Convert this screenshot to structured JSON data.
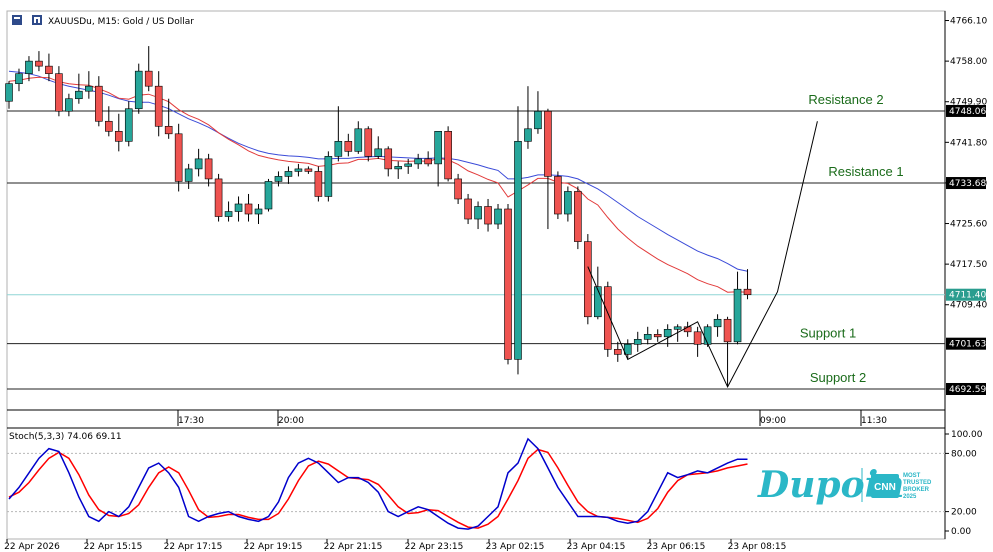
{
  "header": {
    "symbol_title": "XAUUSDu, M15:  Gold / US Dollar"
  },
  "chart_data": {
    "type": "candlestick",
    "title": "XAUUSDu, M15:  Gold / US Dollar",
    "timeframe": "M15",
    "price_axis": {
      "ticks": [
        "4766.10",
        "4758.00",
        "4749.90",
        "4741.80",
        "4733.70",
        "4725.60",
        "4717.50",
        "4709.40"
      ],
      "ylim": [
        4688.4,
        4768.0
      ]
    },
    "price_tags": [
      {
        "value": "4748.06",
        "price": 4748.06,
        "style": "dark"
      },
      {
        "value": "4733.68",
        "price": 4733.68,
        "style": "dark"
      },
      {
        "value": "4711.40",
        "price": 4711.4,
        "style": "accent"
      },
      {
        "value": "4701.63",
        "price": 4701.63,
        "style": "dark"
      },
      {
        "value": "4692.59",
        "price": 4692.59,
        "style": "dark"
      }
    ],
    "levels": [
      {
        "label": "Resistance 2",
        "price": 4748.06
      },
      {
        "label": "Resistance 1",
        "price": 4733.68
      },
      {
        "label": "Support 1",
        "price": 4701.63
      },
      {
        "label": "Support 2",
        "price": 4692.59
      }
    ],
    "current_price": 4711.4,
    "time_labels_upper": [
      "17:30",
      "20:00",
      "09:00",
      "11:30"
    ],
    "time_labels_lower": [
      "22 Apr 2026",
      "22 Apr 15:15",
      "22 Apr 17:15",
      "22 Apr 19:15",
      "22 Apr 21:15",
      "22 Apr 23:15",
      "23 Apr 02:15",
      "23 Apr 04:15",
      "23 Apr 06:15",
      "23 Apr 08:15"
    ],
    "candles": [
      [
        4750.0,
        4754.0,
        4748.5,
        4753.5
      ],
      [
        4753.5,
        4756.5,
        4752.0,
        4755.5
      ],
      [
        4755.5,
        4759.0,
        4754.0,
        4758.0
      ],
      [
        4758.0,
        4760.0,
        4756.0,
        4757.0
      ],
      [
        4757.0,
        4759.5,
        4754.0,
        4755.5
      ],
      [
        4755.5,
        4757.0,
        4747.0,
        4748.0
      ],
      [
        4748.0,
        4751.5,
        4747.0,
        4750.5
      ],
      [
        4750.5,
        4755.5,
        4749.5,
        4752.0
      ],
      [
        4752.0,
        4756.0,
        4750.5,
        4753.0
      ],
      [
        4753.0,
        4755.0,
        4745.0,
        4746.0
      ],
      [
        4746.0,
        4749.0,
        4743.0,
        4744.0
      ],
      [
        4744.0,
        4747.5,
        4740.0,
        4742.0
      ],
      [
        4742.0,
        4750.0,
        4741.0,
        4748.5
      ],
      [
        4748.5,
        4757.5,
        4747.5,
        4756.0
      ],
      [
        4756.0,
        4761.0,
        4752.0,
        4753.0
      ],
      [
        4753.0,
        4756.0,
        4743.0,
        4745.0
      ],
      [
        4745.0,
        4750.5,
        4742.5,
        4743.5
      ],
      [
        4743.5,
        4745.5,
        4732.0,
        4734.0
      ],
      [
        4734.0,
        4737.5,
        4732.5,
        4736.5
      ],
      [
        4736.5,
        4740.5,
        4735.0,
        4738.5
      ],
      [
        4738.5,
        4739.5,
        4733.0,
        4734.5
      ],
      [
        4734.5,
        4735.5,
        4726.0,
        4727.0
      ],
      [
        4727.0,
        4730.0,
        4726.0,
        4728.0
      ],
      [
        4728.0,
        4731.0,
        4726.0,
        4729.5
      ],
      [
        4729.5,
        4731.5,
        4726.0,
        4727.5
      ],
      [
        4727.5,
        4729.5,
        4725.5,
        4728.5
      ],
      [
        4728.5,
        4734.5,
        4728.0,
        4734.0
      ],
      [
        4734.0,
        4736.0,
        4733.0,
        4735.0
      ],
      [
        4735.0,
        4737.0,
        4733.5,
        4736.0
      ],
      [
        4736.0,
        4737.5,
        4735.0,
        4736.5
      ],
      [
        4736.5,
        4737.0,
        4735.5,
        4736.0
      ],
      [
        4736.0,
        4737.0,
        4730.0,
        4731.0
      ],
      [
        4731.0,
        4740.0,
        4730.0,
        4739.0
      ],
      [
        4739.0,
        4749.0,
        4738.0,
        4742.0
      ],
      [
        4742.0,
        4743.5,
        4739.0,
        4740.0
      ],
      [
        4740.0,
        4746.0,
        4739.5,
        4744.5
      ],
      [
        4744.5,
        4745.0,
        4738.0,
        4739.0
      ],
      [
        4739.0,
        4743.0,
        4738.5,
        4740.5
      ],
      [
        4740.5,
        4741.0,
        4735.0,
        4736.5
      ],
      [
        4736.5,
        4738.0,
        4734.5,
        4737.0
      ],
      [
        4737.0,
        4738.5,
        4735.5,
        4737.5
      ],
      [
        4737.5,
        4739.5,
        4736.5,
        4738.5
      ],
      [
        4738.5,
        4740.0,
        4737.0,
        4737.5
      ],
      [
        4737.5,
        4744.0,
        4733.0,
        4744.0
      ],
      [
        4744.0,
        4745.0,
        4734.0,
        4734.5
      ],
      [
        4734.5,
        4735.5,
        4729.5,
        4730.5
      ],
      [
        4730.5,
        4731.5,
        4725.5,
        4726.5
      ],
      [
        4726.5,
        4730.0,
        4724.5,
        4729.0
      ],
      [
        4729.0,
        4730.5,
        4724.0,
        4725.5
      ],
      [
        4725.5,
        4729.5,
        4724.5,
        4728.5
      ],
      [
        4728.5,
        4729.5,
        4697.5,
        4698.5
      ],
      [
        4698.5,
        4749.0,
        4695.5,
        4742.0
      ],
      [
        4742.0,
        4753.0,
        4740.5,
        4744.5
      ],
      [
        4744.5,
        4752.0,
        4743.5,
        4748.0
      ],
      [
        4748.0,
        4748.5,
        4724.5,
        4735.0
      ],
      [
        4735.0,
        4736.0,
        4726.5,
        4727.5
      ],
      [
        4727.5,
        4733.0,
        4726.0,
        4732.0
      ],
      [
        4732.0,
        4733.0,
        4720.5,
        4722.0
      ],
      [
        4722.0,
        4723.5,
        4705.5,
        4707.0
      ],
      [
        4707.0,
        4717.0,
        4706.5,
        4713.0
      ],
      [
        4713.0,
        4714.0,
        4699.0,
        4700.5
      ],
      [
        4700.5,
        4702.0,
        4698.0,
        4699.5
      ],
      [
        4699.5,
        4702.5,
        4698.5,
        4701.5
      ],
      [
        4701.5,
        4704.0,
        4700.0,
        4702.5
      ],
      [
        4702.5,
        4705.0,
        4701.5,
        4703.5
      ],
      [
        4703.5,
        4704.5,
        4702.0,
        4703.0
      ],
      [
        4703.0,
        4705.5,
        4701.0,
        4704.5
      ],
      [
        4704.5,
        4705.5,
        4702.0,
        4705.0
      ],
      [
        4705.0,
        4706.0,
        4703.0,
        4704.0
      ],
      [
        4704.0,
        4705.0,
        4699.0,
        4701.5
      ],
      [
        4701.5,
        4705.5,
        4701.0,
        4705.0
      ],
      [
        4705.0,
        4707.5,
        4703.0,
        4706.5
      ],
      [
        4706.5,
        4707.0,
        4693.0,
        4702.0
      ],
      [
        4702.0,
        4716.0,
        4701.5,
        4712.5
      ],
      [
        4712.5,
        4716.5,
        4710.5,
        4711.4
      ]
    ],
    "ma_blue": [
      4756,
      4755.8,
      4755.5,
      4755,
      4754.2,
      4753.5,
      4753,
      4752.6,
      4752.2,
      4751.8,
      4751.2,
      4750.5,
      4750,
      4749.8,
      4749.8,
      4749.2,
      4748.5,
      4747.5,
      4746.5,
      4745.7,
      4744.8,
      4743.7,
      4742.6,
      4741.6,
      4740.8,
      4740.1,
      4739.6,
      4739.3,
      4739.1,
      4739,
      4738.8,
      4738.5,
      4738.5,
      4738.6,
      4738.6,
      4738.8,
      4738.9,
      4739,
      4738.9,
      4738.8,
      4738.7,
      4738.6,
      4738.6,
      4738.7,
      4738.6,
      4738.3,
      4737.8,
      4737.3,
      4736.7,
      4736.2,
      4734.5,
      4734.5,
      4734.8,
      4735.3,
      4735.3,
      4735.2,
      4735,
      4734.5,
      4733.5,
      4732.5,
      4731.2,
      4729.8,
      4728.4,
      4727,
      4725.8,
      4724.6,
      4723.4,
      4722.3,
      4721.2,
      4720.1,
      4719.3,
      4718.6,
      4717.6,
      4716.5,
      4716.1
    ],
    "ma_red": [
      4754,
      4754.2,
      4754.6,
      4754.8,
      4754.7,
      4753.9,
      4753.5,
      4753.3,
      4753.2,
      4752.5,
      4751.7,
      4750.6,
      4750.4,
      4751.2,
      4751.4,
      4750.7,
      4749.9,
      4748.3,
      4747.2,
      4746.4,
      4745.3,
      4743.7,
      4742.4,
      4741.3,
      4740.1,
      4739.2,
      4738.7,
      4738.3,
      4738,
      4737.8,
      4737.6,
      4737,
      4737.2,
      4737.6,
      4737.7,
      4738.4,
      4738.4,
      4738.6,
      4738.2,
      4738.1,
      4738,
      4738.1,
      4738,
      4738.6,
      4738.3,
      4737.4,
      4736.1,
      4735.3,
      4734.4,
      4733.7,
      4730.9,
      4732.1,
      4733.3,
      4734.6,
      4734.6,
      4733.8,
      4733.6,
      4732.5,
      4730.5,
      4729.3,
      4726.8,
      4724.5,
      4722.7,
      4721.1,
      4719.8,
      4718.5,
      4717.4,
      4716.5,
      4715.6,
      4714.4,
      4713.6,
      4713,
      4711.9,
      4712,
      4711.9
    ],
    "zigzag": [
      {
        "candle": 58,
        "price": 4717.0
      },
      {
        "candle": 62,
        "price": 4698.5
      },
      {
        "candle": 69,
        "price": 4706.0
      },
      {
        "candle": 72,
        "price": 4693.0
      },
      {
        "candle": 77,
        "price": 4712.0
      },
      {
        "candle": 81,
        "price": 4746.0
      }
    ],
    "stochastic": {
      "label": "Stoch(5,3,3) 74.06 69.11",
      "k_value": 74.06,
      "d_value": 69.11,
      "ticks": [
        "100.00",
        "80.00",
        "20.00",
        "0.00"
      ],
      "levels": [
        80,
        20
      ],
      "k": [
        33,
        45,
        60,
        75,
        85,
        82,
        60,
        35,
        15,
        10,
        20,
        15,
        25,
        45,
        65,
        70,
        60,
        45,
        15,
        10,
        15,
        18,
        20,
        15,
        12,
        10,
        15,
        30,
        55,
        70,
        75,
        70,
        60,
        50,
        55,
        55,
        50,
        40,
        20,
        15,
        20,
        25,
        22,
        15,
        8,
        3,
        2,
        5,
        15,
        25,
        60,
        70,
        95,
        85,
        65,
        45,
        30,
        15,
        15,
        15,
        14,
        10,
        8,
        10,
        20,
        40,
        60,
        55,
        58,
        62,
        60,
        65,
        70,
        74,
        74.06
      ],
      "d": [
        35,
        40,
        50,
        63,
        75,
        81,
        75,
        58,
        37,
        22,
        16,
        15,
        18,
        27,
        45,
        60,
        66,
        60,
        42,
        22,
        14,
        15,
        17,
        17,
        14,
        12,
        12,
        18,
        33,
        52,
        67,
        72,
        69,
        62,
        55,
        54,
        53,
        48,
        37,
        25,
        18,
        19,
        22,
        21,
        15,
        9,
        4,
        3,
        7,
        15,
        33,
        52,
        75,
        84,
        81,
        65,
        47,
        30,
        20,
        15,
        14,
        13,
        11,
        9,
        13,
        23,
        40,
        52,
        58,
        59,
        60,
        62,
        65,
        67,
        69.11
      ],
      "k_color": "#0000cc",
      "d_color": "#ff0000"
    },
    "colors": {
      "bull": "#26a69a",
      "bear": "#ef5350",
      "wick": "#000000",
      "ma_blue": "#3b4bd8",
      "ma_red": "#e23b3b",
      "current_line": "#8fd6d6",
      "level_text": "#1a6b1a",
      "accent_tag": "#2a9d8f"
    }
  },
  "watermark": {
    "brand": "Dupoin",
    "badge_lines": [
      "MOST",
      "TRUSTED",
      "BROKER",
      "2025"
    ],
    "badge_logo": "CNN",
    "color": "#2bb7c7"
  }
}
